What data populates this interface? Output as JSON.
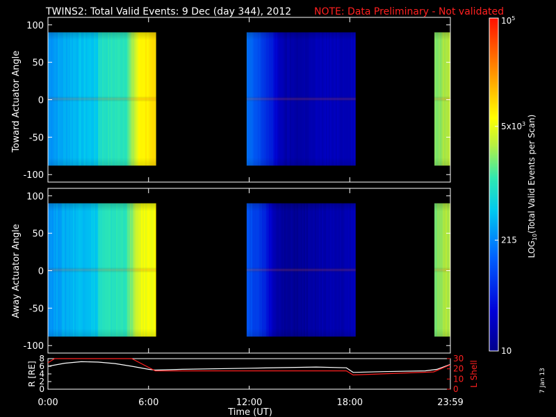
{
  "header": {
    "title": "TWINS2: Total Valid Events:  9 Dec (day 344), 2012",
    "note": "NOTE: Data Preliminary - Not validated"
  },
  "footer": {
    "date_stamp": "7 Jan 13"
  },
  "colors": {
    "note": "#ff2020",
    "lshell": "#ff2020",
    "radius": "#ffffff",
    "axes": "#ffffff",
    "background": "#000000"
  },
  "chart_data": [
    {
      "type": "heatmap",
      "ylabel": "Toward Actuator Angle",
      "xlim": [
        0,
        24
      ],
      "ylim": [
        -110,
        110
      ],
      "y_extent": [
        -88,
        90
      ],
      "ytick_labels": [
        "100",
        "50",
        "0",
        "-50",
        "-100"
      ],
      "blocks": [
        {
          "x": [
            0.0,
            6.45
          ],
          "profile": [
            [
              0.0,
              2.4
            ],
            [
              1.5,
              2.6
            ],
            [
              2.9,
              2.7
            ],
            [
              3.0,
              2.95
            ],
            [
              3.7,
              3.0
            ],
            [
              4.6,
              3.05
            ],
            [
              5.0,
              3.4
            ],
            [
              5.2,
              3.6
            ],
            [
              5.45,
              3.85
            ],
            [
              6.45,
              3.95
            ]
          ]
        },
        {
          "x": [
            11.85,
            18.35
          ],
          "profile": [
            [
              11.85,
              2.2
            ],
            [
              12.4,
              2.05
            ],
            [
              13.0,
              1.8
            ],
            [
              13.5,
              1.55
            ],
            [
              14.0,
              1.25
            ],
            [
              15.0,
              1.2
            ],
            [
              16.5,
              1.35
            ],
            [
              17.6,
              1.3
            ],
            [
              18.35,
              1.4
            ]
          ]
        },
        {
          "x": [
            23.05,
            24.0
          ],
          "profile": [
            [
              23.05,
              3.3
            ],
            [
              24.0,
              3.55
            ]
          ]
        }
      ]
    },
    {
      "type": "heatmap",
      "ylabel": "Away Actuator Angle",
      "xlim": [
        0,
        24
      ],
      "ylim": [
        -110,
        110
      ],
      "y_extent": [
        -88,
        90
      ],
      "ytick_labels": [
        "100",
        "50",
        "0",
        "-50",
        "-100"
      ],
      "blocks": [
        {
          "x": [
            0.0,
            6.45
          ],
          "profile": [
            [
              0.0,
              2.4
            ],
            [
              1.5,
              2.6
            ],
            [
              2.9,
              2.7
            ],
            [
              3.0,
              2.95
            ],
            [
              3.7,
              3.0
            ],
            [
              4.6,
              3.05
            ],
            [
              5.0,
              3.35
            ],
            [
              5.2,
              3.5
            ],
            [
              5.45,
              3.7
            ],
            [
              6.45,
              3.8
            ]
          ]
        },
        {
          "x": [
            11.85,
            18.35
          ],
          "profile": [
            [
              11.85,
              2.1
            ],
            [
              12.4,
              1.9
            ],
            [
              13.0,
              1.65
            ],
            [
              13.5,
              1.3
            ],
            [
              14.0,
              1.1
            ],
            [
              15.0,
              1.1
            ],
            [
              16.5,
              1.25
            ],
            [
              17.6,
              1.25
            ],
            [
              18.35,
              1.35
            ]
          ]
        },
        {
          "x": [
            23.05,
            24.0
          ],
          "profile": [
            [
              23.05,
              3.3
            ],
            [
              24.0,
              3.55
            ]
          ]
        }
      ]
    },
    {
      "type": "line",
      "xlabel": "Time (UT)",
      "ylabel": "R [RE]",
      "ylabel2": "L Shell",
      "xlim": [
        0,
        24
      ],
      "ylim": [
        0,
        8
      ],
      "ylim2": [
        0,
        30
      ],
      "xtick_labels": [
        "0:00",
        "6:00",
        "12:00",
        "18:00",
        "23:59"
      ],
      "xtick_values": [
        0,
        6,
        12,
        18,
        24
      ],
      "ytick_labels": [
        "8",
        "6",
        "4",
        "2",
        "0"
      ],
      "ytick_values": [
        8,
        6,
        4,
        2,
        0
      ],
      "ytick2_labels": [
        "30",
        "20",
        "10",
        "0"
      ],
      "ytick2_values": [
        30,
        20,
        10,
        0
      ],
      "series": [
        {
          "axis": "left",
          "color": "#ffffff",
          "x": [
            0,
            1,
            2,
            3,
            4,
            5,
            6,
            6.4,
            8,
            12,
            16,
            17.8,
            18.2,
            20,
            22.5,
            23.2,
            24
          ],
          "y": [
            6.0,
            6.8,
            7.2,
            7.1,
            6.7,
            6.0,
            5.2,
            5.0,
            5.2,
            5.5,
            5.8,
            5.6,
            4.4,
            4.6,
            4.8,
            5.2,
            6.5
          ]
        },
        {
          "axis": "right",
          "color": "#ff2020",
          "x": [
            0,
            0.4,
            5.0,
            6.4,
            12,
            17.8,
            18.2,
            23.0,
            24
          ],
          "y": [
            26,
            30,
            30,
            18,
            18,
            18,
            14,
            17,
            24
          ]
        }
      ]
    }
  ],
  "colorbar": {
    "label": "LOG10(Total Valid Events per Scan)",
    "label_main": "LOG",
    "label_sub": "10",
    "label_rest": "(Total Valid Events per Scan)",
    "range": [
      1,
      5
    ],
    "ticks": [
      {
        "value": 5,
        "base": "10",
        "sup": "5",
        "sub": ""
      },
      {
        "value": 3.699,
        "base": "5x10",
        "sup": "3",
        "sub": ""
      },
      {
        "value": 2.332,
        "base": "215",
        "sup": "",
        "sub": ""
      },
      {
        "value": 1,
        "base": "10",
        "sup": "",
        "sub": ""
      }
    ]
  }
}
